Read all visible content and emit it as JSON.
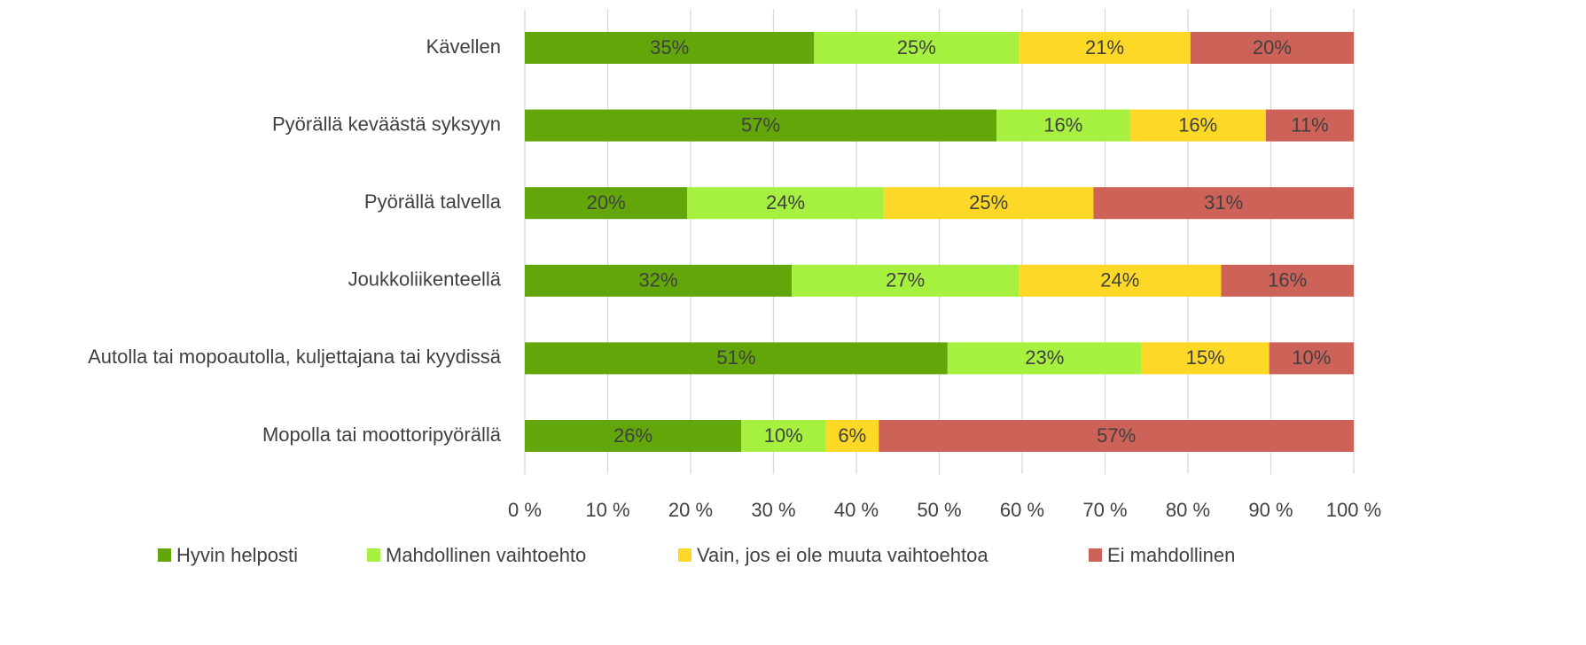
{
  "chart_data": {
    "type": "stacked_bar_horizontal",
    "categories": [
      "Kävellen",
      "Pyörällä keväästä syksyyn",
      "Pyörällä talvella",
      "Joukkoliikenteellä",
      "Autolla tai mopoautolla, kuljettajana tai kyydissä",
      "Mopolla tai moottoripyörällä"
    ],
    "series": [
      {
        "name": "Hyvin helposti",
        "color": "#62a60a",
        "values": [
          34.9,
          56.9,
          19.6,
          32.2,
          51.0,
          26.1
        ],
        "value_labels": [
          "35%",
          "57%",
          "20%",
          "32%",
          "51%",
          "26%"
        ]
      },
      {
        "name": "Mahdollinen vaihtoehto",
        "color": "#a6f040",
        "values": [
          24.7,
          16.1,
          23.7,
          27.4,
          23.4,
          10.2
        ],
        "value_labels": [
          "25%",
          "16%",
          "24%",
          "27%",
          "23%",
          "10%"
        ]
      },
      {
        "name": "Vain, jos ei ole muuta vaihtoehtoa",
        "color": "#fdd826",
        "values": [
          20.7,
          16.4,
          25.3,
          24.4,
          15.4,
          6.4
        ],
        "value_labels": [
          "21%",
          "16%",
          "25%",
          "24%",
          "15%",
          "6%"
        ]
      },
      {
        "name": "Ei mahdollinen",
        "color": "#cd6259",
        "values": [
          19.7,
          10.6,
          31.4,
          16.0,
          10.2,
          57.3
        ],
        "value_labels": [
          "20%",
          "11%",
          "31%",
          "16%",
          "10%",
          "57%"
        ]
      }
    ],
    "xlim": [
      0,
      100
    ],
    "xticks": [
      {
        "value": 0,
        "label": "0 %"
      },
      {
        "value": 10,
        "label": "10 %"
      },
      {
        "value": 20,
        "label": "20 %"
      },
      {
        "value": 30,
        "label": "30 %"
      },
      {
        "value": 40,
        "label": "40 %"
      },
      {
        "value": 50,
        "label": "50 %"
      },
      {
        "value": 60,
        "label": "60 %"
      },
      {
        "value": 70,
        "label": "70 %"
      },
      {
        "value": 80,
        "label": "80 %"
      },
      {
        "value": 90,
        "label": "90 %"
      },
      {
        "value": 100,
        "label": "100 %"
      }
    ],
    "grid": true,
    "legend": "bottom"
  }
}
